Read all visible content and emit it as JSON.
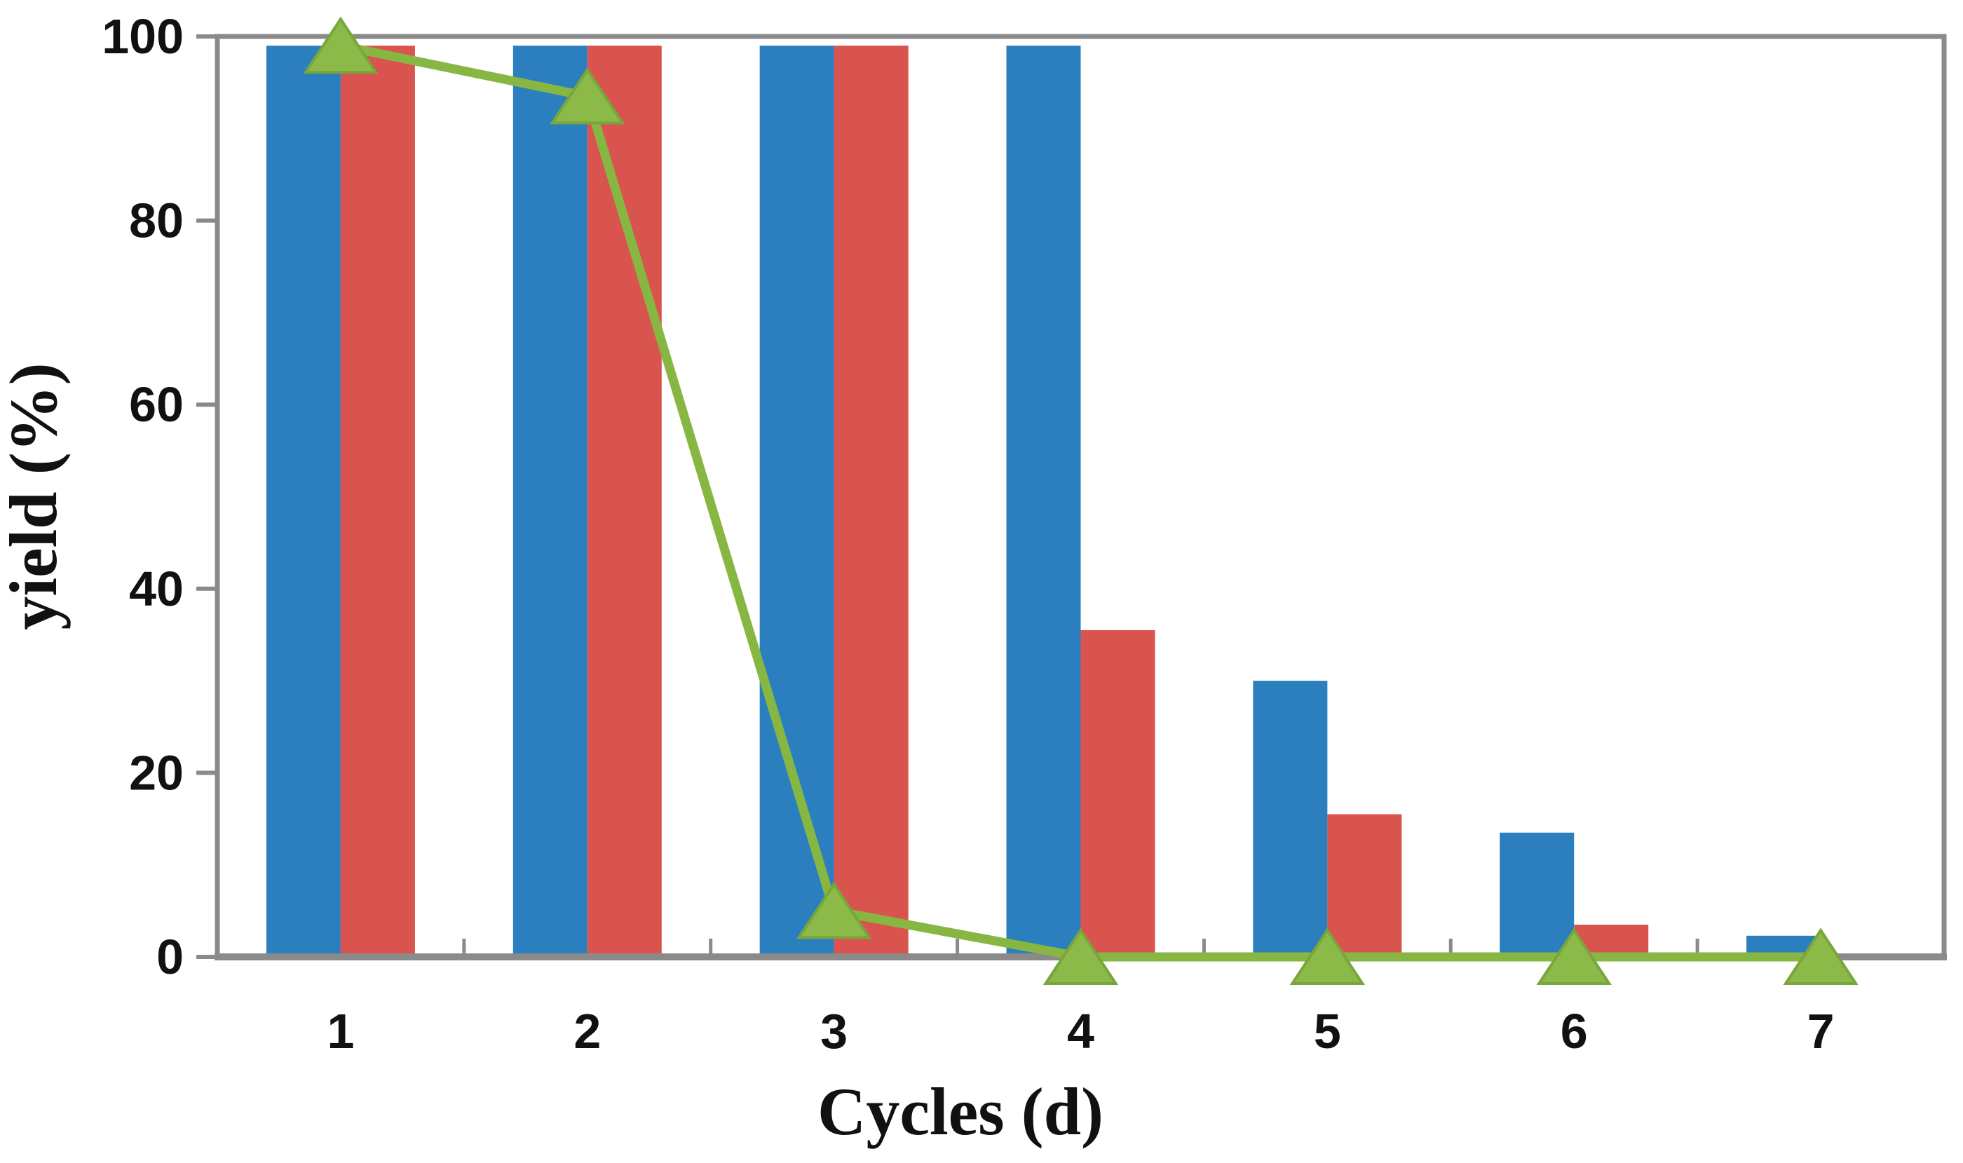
{
  "chart_data": {
    "type": "bar",
    "title": "",
    "xlabel": "Cycles (d)",
    "ylabel": "yield (%)",
    "categories": [
      "1",
      "2",
      "3",
      "4",
      "5",
      "6",
      "7"
    ],
    "series": [
      {
        "name": "blue-bars",
        "type": "bar",
        "color": "#2B7FBE",
        "values": [
          99,
          99,
          99,
          99,
          30,
          13.5,
          2.3
        ]
      },
      {
        "name": "red-bars",
        "type": "bar",
        "color": "#D9534F",
        "values": [
          99,
          99,
          99,
          35.5,
          15.5,
          3.5,
          0
        ]
      },
      {
        "name": "green-line",
        "type": "line",
        "marker": "triangle",
        "color": "#87B742",
        "marker_color": "#8CBA48",
        "marker_edge": "#79A63C",
        "values": [
          99,
          93.5,
          5,
          0,
          0,
          0,
          0
        ]
      }
    ],
    "ylim": [
      0,
      100
    ],
    "yticks": [
      0,
      20,
      40,
      60,
      80,
      100
    ],
    "axis_color": "#8A8A8A",
    "text_color": "#111111",
    "background": "#FFFFFF",
    "grid": false,
    "legend": false
  }
}
